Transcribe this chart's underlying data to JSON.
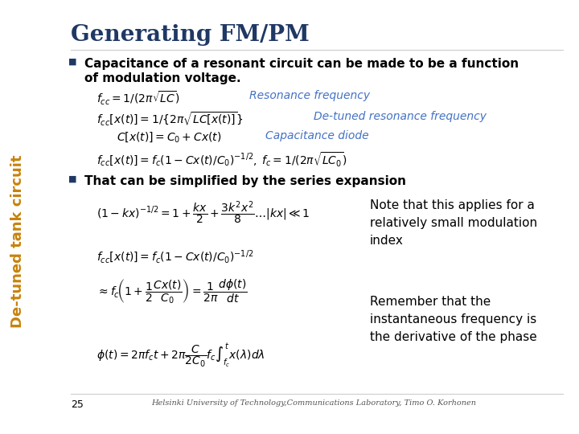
{
  "title": "Generating FM/PM",
  "title_color": "#1F3864",
  "title_fontsize": 20,
  "bg_color": "#FFFFFF",
  "slide_left_label": "De-tuned tank circuit",
  "slide_left_color": "#C8820A",
  "bullet_color": "#1F3864",
  "bullet1_text": "Capacitance of a resonant circuit can be made to be a function\nof modulation voltage.",
  "eq1_label": "Resonance frequency",
  "eq1_label_color": "#4472C4",
  "eq2_label": "De-tuned resonance frequency",
  "eq2_label_color": "#4472C4",
  "eq3_label": "Capacitance diode",
  "eq3_label_color": "#4472C4",
  "bullet2_text": "That can be simplified by the series expansion",
  "note1": "Note that this applies for a\nrelatively small modulation\nindex",
  "note2": "Remember that the\ninstantaneous frequency is\nthe derivative of the phase",
  "footer_page": "25",
  "footer_text": "Helsinki University of Technology,Communications Laboratory, Timo O. Korhonen",
  "text_fontsize": 11,
  "eq_fontsize": 10,
  "note_fontsize": 11
}
